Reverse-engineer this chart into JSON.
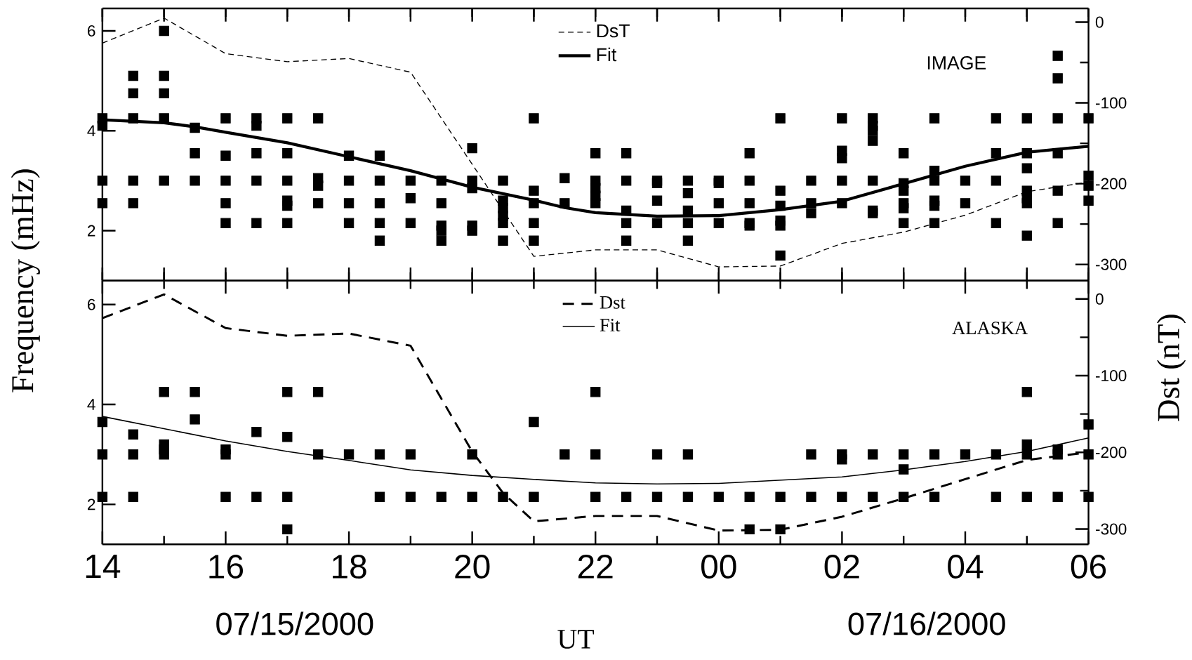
{
  "chart_data": [
    {
      "type": "scatter",
      "ylabel": "Frequency (mHz)",
      "y2label": "Dst (nT)",
      "annotations": [
        "IMAGE"
      ],
      "legend": "top",
      "tick_labels": "y",
      "xlim": [
        "2000-07-15T14:00",
        "2000-07-16T06:00"
      ],
      "xticks": [
        {
          "value": "2000-07-15T14:00",
          "label": null
        },
        {
          "value": "2000-07-15T15:00",
          "label": null
        },
        {
          "value": "2000-07-15T16:00",
          "label": null
        },
        {
          "value": "2000-07-15T17:00",
          "label": null
        },
        {
          "value": "2000-07-15T18:00",
          "label": null
        },
        {
          "value": "2000-07-15T19:00",
          "label": null
        },
        {
          "value": "2000-07-15T20:00",
          "label": null
        },
        {
          "value": "2000-07-15T21:00",
          "label": null
        },
        {
          "value": "2000-07-15T22:00",
          "label": null
        },
        {
          "value": "2000-07-15T23:00",
          "label": null
        },
        {
          "value": "2000-07-16T00:00",
          "label": null
        },
        {
          "value": "2000-07-16T01:00",
          "label": null
        },
        {
          "value": "2000-07-16T02:00",
          "label": null
        },
        {
          "value": "2000-07-16T03:00",
          "label": null
        },
        {
          "value": "2000-07-16T04:00",
          "label": null
        },
        {
          "value": "2000-07-16T05:00",
          "label": null
        },
        {
          "value": "2000-07-16T06:00",
          "label": null
        }
      ],
      "ylim": [
        1,
        6.45
      ],
      "yticks": [
        2,
        4,
        6
      ],
      "y2lim": [
        -320,
        17
      ],
      "y2ticks": [
        -300,
        {
          "value": -250,
          "label": null
        },
        -200,
        {
          "value": -150,
          "label": null
        },
        -100,
        {
          "value": -50,
          "label": null
        },
        0
      ],
      "series": [
        {
          "marker": "square",
          "color": "#000000",
          "x": [
            "2000-07-15T14:00",
            "2000-07-15T14:00",
            "2000-07-15T14:00",
            "2000-07-15T14:00",
            "2000-07-15T14:30",
            "2000-07-15T14:30",
            "2000-07-15T14:30",
            "2000-07-15T14:30",
            "2000-07-15T14:30",
            "2000-07-15T15:00",
            "2000-07-15T15:00",
            "2000-07-15T15:00",
            "2000-07-15T15:00",
            "2000-07-15T15:00",
            "2000-07-15T15:30",
            "2000-07-15T15:30",
            "2000-07-15T15:30",
            "2000-07-15T16:00",
            "2000-07-15T16:00",
            "2000-07-15T16:00",
            "2000-07-15T16:00",
            "2000-07-15T16:00",
            "2000-07-15T16:30",
            "2000-07-15T16:30",
            "2000-07-15T16:30",
            "2000-07-15T16:30",
            "2000-07-15T16:30",
            "2000-07-15T17:00",
            "2000-07-15T17:00",
            "2000-07-15T17:00",
            "2000-07-15T17:00",
            "2000-07-15T17:00",
            "2000-07-15T17:00",
            "2000-07-15T17:30",
            "2000-07-15T17:30",
            "2000-07-15T17:30",
            "2000-07-15T17:30",
            "2000-07-15T18:00",
            "2000-07-15T18:00",
            "2000-07-15T18:00",
            "2000-07-15T18:00",
            "2000-07-15T18:30",
            "2000-07-15T18:30",
            "2000-07-15T18:30",
            "2000-07-15T18:30",
            "2000-07-15T18:30",
            "2000-07-15T19:00",
            "2000-07-15T19:00",
            "2000-07-15T19:00",
            "2000-07-15T19:30",
            "2000-07-15T19:30",
            "2000-07-15T19:30",
            "2000-07-15T19:30",
            "2000-07-15T19:30",
            "2000-07-15T20:00",
            "2000-07-15T20:00",
            "2000-07-15T20:00",
            "2000-07-15T20:00",
            "2000-07-15T20:00",
            "2000-07-15T20:30",
            "2000-07-15T20:30",
            "2000-07-15T20:30",
            "2000-07-15T20:30",
            "2000-07-15T20:30",
            "2000-07-15T20:30",
            "2000-07-15T21:00",
            "2000-07-15T21:00",
            "2000-07-15T21:00",
            "2000-07-15T21:00",
            "2000-07-15T21:00",
            "2000-07-15T21:30",
            "2000-07-15T21:30",
            "2000-07-15T22:00",
            "2000-07-15T22:00",
            "2000-07-15T22:00",
            "2000-07-15T22:00",
            "2000-07-15T22:00",
            "2000-07-15T22:30",
            "2000-07-15T22:30",
            "2000-07-15T22:30",
            "2000-07-15T22:30",
            "2000-07-15T22:30",
            "2000-07-15T23:00",
            "2000-07-15T23:00",
            "2000-07-15T23:00",
            "2000-07-15T23:00",
            "2000-07-15T23:30",
            "2000-07-15T23:30",
            "2000-07-15T23:30",
            "2000-07-15T23:30",
            "2000-07-15T23:30",
            "2000-07-16T00:00",
            "2000-07-16T00:00",
            "2000-07-16T00:00",
            "2000-07-16T00:00",
            "2000-07-16T00:30",
            "2000-07-16T00:30",
            "2000-07-16T00:30",
            "2000-07-16T00:30",
            "2000-07-16T00:30",
            "2000-07-16T01:00",
            "2000-07-16T01:00",
            "2000-07-16T01:00",
            "2000-07-16T01:00",
            "2000-07-16T01:00",
            "2000-07-16T01:00",
            "2000-07-16T01:30",
            "2000-07-16T01:30",
            "2000-07-16T01:30",
            "2000-07-16T02:00",
            "2000-07-16T02:00",
            "2000-07-16T02:00",
            "2000-07-16T02:00",
            "2000-07-16T02:00",
            "2000-07-16T02:30",
            "2000-07-16T02:30",
            "2000-07-16T02:30",
            "2000-07-16T02:30",
            "2000-07-16T02:30",
            "2000-07-16T02:30",
            "2000-07-16T02:30",
            "2000-07-16T03:00",
            "2000-07-16T03:00",
            "2000-07-16T03:00",
            "2000-07-16T03:00",
            "2000-07-16T03:00",
            "2000-07-16T03:00",
            "2000-07-16T03:30",
            "2000-07-16T03:30",
            "2000-07-16T03:30",
            "2000-07-16T03:30",
            "2000-07-16T03:30",
            "2000-07-16T03:30",
            "2000-07-16T04:00",
            "2000-07-16T04:00",
            "2000-07-16T04:30",
            "2000-07-16T04:30",
            "2000-07-16T04:30",
            "2000-07-16T04:30",
            "2000-07-16T05:00",
            "2000-07-16T05:00",
            "2000-07-16T05:00",
            "2000-07-16T05:00",
            "2000-07-16T05:00",
            "2000-07-16T05:00",
            "2000-07-16T05:00",
            "2000-07-16T05:30",
            "2000-07-16T05:30",
            "2000-07-16T05:30",
            "2000-07-16T05:30",
            "2000-07-16T05:30",
            "2000-07-16T05:30",
            "2000-07-16T06:00",
            "2000-07-16T06:00",
            "2000-07-16T06:00",
            "2000-07-16T06:00"
          ],
          "values": [
            4.25,
            4.1,
            3.0,
            2.55,
            5.1,
            4.75,
            4.25,
            3.0,
            2.55,
            6.0,
            5.1,
            4.75,
            4.25,
            3.0,
            4.06,
            3.55,
            3.0,
            4.25,
            3.5,
            3.0,
            2.55,
            2.15,
            4.25,
            4.1,
            3.55,
            3.0,
            2.15,
            4.25,
            3.55,
            3.0,
            2.6,
            2.5,
            2.15,
            4.25,
            3.05,
            2.9,
            2.55,
            3.5,
            3.0,
            2.55,
            2.15,
            3.5,
            3.0,
            2.55,
            2.15,
            1.8,
            3.0,
            2.65,
            2.15,
            3.0,
            2.55,
            2.1,
            2.0,
            1.8,
            3.65,
            3.0,
            2.85,
            2.1,
            2.0,
            3.0,
            2.6,
            2.45,
            2.3,
            2.15,
            1.8,
            4.25,
            2.8,
            2.55,
            2.15,
            1.8,
            3.05,
            2.55,
            3.55,
            3.0,
            2.85,
            2.7,
            2.55,
            3.55,
            3.0,
            2.4,
            2.15,
            1.8,
            3.0,
            2.95,
            2.6,
            2.15,
            3.0,
            2.75,
            2.4,
            2.15,
            1.8,
            3.0,
            2.95,
            2.55,
            2.15,
            3.55,
            3.0,
            2.55,
            2.15,
            2.1,
            4.25,
            2.8,
            2.5,
            2.2,
            2.1,
            1.5,
            3.0,
            2.55,
            2.35,
            4.25,
            3.6,
            3.45,
            3.0,
            2.55,
            4.25,
            4.1,
            4.0,
            3.8,
            3.0,
            2.4,
            2.35,
            3.55,
            2.95,
            2.8,
            2.55,
            2.45,
            2.15,
            4.25,
            3.2,
            3.0,
            2.6,
            2.5,
            2.15,
            3.0,
            2.55,
            4.25,
            3.55,
            3.0,
            2.15,
            4.25,
            3.55,
            3.25,
            2.8,
            2.65,
            2.55,
            1.9,
            5.5,
            5.05,
            4.25,
            3.55,
            2.8,
            2.15,
            4.25,
            3.1,
            2.9,
            2.6
          ]
        },
        {
          "type": "line",
          "name": "DsT",
          "axis": "y2",
          "line_style": "dashed",
          "marker": "none",
          "color": "#000000",
          "x": [
            "2000-07-15T14:00",
            "2000-07-15T15:00",
            "2000-07-15T16:00",
            "2000-07-15T17:00",
            "2000-07-15T18:00",
            "2000-07-15T19:00",
            "2000-07-15T21:00",
            "2000-07-15T22:00",
            "2000-07-15T23:00",
            "2000-07-16T00:00",
            "2000-07-16T01:00",
            "2000-07-16T02:00",
            "2000-07-16T03:00",
            "2000-07-16T04:00",
            "2000-07-16T05:00",
            "2000-07-16T06:00"
          ],
          "values": [
            -26,
            5,
            -39,
            -49,
            -45,
            -62,
            -290,
            -282,
            -282,
            -303,
            -302,
            -274,
            -260,
            -239,
            -210,
            -198
          ]
        },
        {
          "type": "line",
          "name": "Fit",
          "line_style": "solid",
          "marker": "none",
          "color": "#000000",
          "x": [
            "2000-07-15T14:00",
            "2000-07-15T15:00",
            "2000-07-15T15:30",
            "2000-07-15T16:00",
            "2000-07-15T17:00",
            "2000-07-15T18:00",
            "2000-07-15T19:00",
            "2000-07-15T20:00",
            "2000-07-15T21:00",
            "2000-07-15T21:30",
            "2000-07-15T22:00",
            "2000-07-15T23:00",
            "2000-07-16T00:00",
            "2000-07-16T01:00",
            "2000-07-16T02:00",
            "2000-07-16T03:00",
            "2000-07-16T04:00",
            "2000-07-16T05:00",
            "2000-07-16T06:00"
          ],
          "values": [
            4.22,
            4.16,
            4.08,
            3.97,
            3.76,
            3.48,
            3.2,
            2.87,
            2.61,
            2.46,
            2.36,
            2.29,
            2.3,
            2.42,
            2.59,
            2.94,
            3.29,
            3.57,
            3.69
          ]
        }
      ]
    },
    {
      "type": "scatter",
      "xlabel": "UT",
      "annotations": [
        "ALASKA",
        "07/15/2000",
        "07/16/2000"
      ],
      "legend": "top",
      "xlim": [
        "2000-07-15T14:00",
        "2000-07-16T06:00"
      ],
      "xticks": [
        {
          "value": "2000-07-15T14:00",
          "label": "14"
        },
        {
          "value": "2000-07-15T15:00",
          "label": null
        },
        {
          "value": "2000-07-15T16:00",
          "label": "16"
        },
        {
          "value": "2000-07-15T17:00",
          "label": null
        },
        {
          "value": "2000-07-15T18:00",
          "label": "18"
        },
        {
          "value": "2000-07-15T19:00",
          "label": null
        },
        {
          "value": "2000-07-15T20:00",
          "label": "20"
        },
        {
          "value": "2000-07-15T21:00",
          "label": null
        },
        {
          "value": "2000-07-15T22:00",
          "label": "22"
        },
        {
          "value": "2000-07-15T23:00",
          "label": null
        },
        {
          "value": "2000-07-16T00:00",
          "label": "00"
        },
        {
          "value": "2000-07-16T01:00",
          "label": null
        },
        {
          "value": "2000-07-16T02:00",
          "label": "02"
        },
        {
          "value": "2000-07-16T03:00",
          "label": null
        },
        {
          "value": "2000-07-16T04:00",
          "label": "04"
        },
        {
          "value": "2000-07-16T05:00",
          "label": null
        },
        {
          "value": "2000-07-16T06:00",
          "label": "06"
        }
      ],
      "ylim": [
        1.2,
        6.48
      ],
      "yticks": [
        2,
        4,
        6
      ],
      "y2lim": [
        -320,
        24
      ],
      "y2ticks": [
        -300,
        {
          "value": -250,
          "label": null
        },
        -200,
        {
          "value": -150,
          "label": null
        },
        -100,
        {
          "value": -50,
          "label": null
        },
        0
      ],
      "series": [
        {
          "marker": "square",
          "color": "#000000",
          "x": [
            "2000-07-15T14:00",
            "2000-07-15T14:00",
            "2000-07-15T14:00",
            "2000-07-15T14:30",
            "2000-07-15T14:30",
            "2000-07-15T14:30",
            "2000-07-15T15:00",
            "2000-07-15T15:00",
            "2000-07-15T15:00",
            "2000-07-15T15:00",
            "2000-07-15T15:30",
            "2000-07-15T15:30",
            "2000-07-15T16:00",
            "2000-07-15T16:00",
            "2000-07-15T16:00",
            "2000-07-15T16:30",
            "2000-07-15T16:30",
            "2000-07-15T17:00",
            "2000-07-15T17:00",
            "2000-07-15T17:00",
            "2000-07-15T17:00",
            "2000-07-15T17:30",
            "2000-07-15T17:30",
            "2000-07-15T18:00",
            "2000-07-15T18:30",
            "2000-07-15T18:30",
            "2000-07-15T19:00",
            "2000-07-15T19:00",
            "2000-07-15T19:30",
            "2000-07-15T20:00",
            "2000-07-15T20:00",
            "2000-07-15T20:30",
            "2000-07-15T21:00",
            "2000-07-15T21:00",
            "2000-07-15T21:30",
            "2000-07-15T22:00",
            "2000-07-15T22:00",
            "2000-07-15T22:00",
            "2000-07-15T22:30",
            "2000-07-15T23:00",
            "2000-07-15T23:00",
            "2000-07-15T23:30",
            "2000-07-15T23:30",
            "2000-07-16T00:00",
            "2000-07-16T00:30",
            "2000-07-16T00:30",
            "2000-07-16T01:00",
            "2000-07-16T01:00",
            "2000-07-16T01:30",
            "2000-07-16T01:30",
            "2000-07-16T02:00",
            "2000-07-16T02:00",
            "2000-07-16T02:00",
            "2000-07-16T02:30",
            "2000-07-16T02:30",
            "2000-07-16T03:00",
            "2000-07-16T03:00",
            "2000-07-16T03:00",
            "2000-07-16T03:30",
            "2000-07-16T03:30",
            "2000-07-16T04:00",
            "2000-07-16T04:30",
            "2000-07-16T04:30",
            "2000-07-16T05:00",
            "2000-07-16T05:00",
            "2000-07-16T05:00",
            "2000-07-16T05:00",
            "2000-07-16T05:30",
            "2000-07-16T05:30",
            "2000-07-16T05:30",
            "2000-07-16T06:00",
            "2000-07-16T06:00",
            "2000-07-16T06:00"
          ],
          "values": [
            3.65,
            3.0,
            2.15,
            3.4,
            3.0,
            2.15,
            4.25,
            3.2,
            3.1,
            3.0,
            4.25,
            3.7,
            3.1,
            3.0,
            2.15,
            3.45,
            2.15,
            4.25,
            3.35,
            2.15,
            1.5,
            4.25,
            3.0,
            3.0,
            3.0,
            2.15,
            3.0,
            2.15,
            2.15,
            3.0,
            2.15,
            2.15,
            3.65,
            2.15,
            3.0,
            4.25,
            3.0,
            2.15,
            2.15,
            3.0,
            2.15,
            3.0,
            2.15,
            2.15,
            2.15,
            1.5,
            2.15,
            1.5,
            3.0,
            2.15,
            3.0,
            2.9,
            2.15,
            3.0,
            2.15,
            3.0,
            2.7,
            2.15,
            3.0,
            2.15,
            3.0,
            3.0,
            2.15,
            4.25,
            3.2,
            3.0,
            2.15,
            3.1,
            3.0,
            2.15,
            3.6,
            3.0,
            2.15
          ]
        },
        {
          "type": "line",
          "name": "Dst",
          "axis": "y2",
          "line_style": "dashed",
          "marker": "none",
          "color": "#000000",
          "x": [
            "2000-07-15T14:00",
            "2000-07-15T15:00",
            "2000-07-15T16:00",
            "2000-07-15T17:00",
            "2000-07-15T18:00",
            "2000-07-15T19:00",
            "2000-07-15T20:00",
            "2000-07-15T20:30",
            "2000-07-15T21:00",
            "2000-07-15T22:00",
            "2000-07-15T23:00",
            "2000-07-16T00:00",
            "2000-07-16T01:00",
            "2000-07-16T02:00",
            "2000-07-16T03:00",
            "2000-07-16T04:00",
            "2000-07-16T05:00",
            "2000-07-16T06:00"
          ],
          "values": [
            -25,
            6,
            -38,
            -48,
            -45,
            -61,
            -199,
            -253,
            -290,
            -283,
            -283,
            -302,
            -301,
            -284,
            -260,
            -235,
            -210,
            -200
          ]
        },
        {
          "type": "line",
          "name": "Fit",
          "line_style": "solid",
          "marker": "none",
          "color": "#000000",
          "x": [
            "2000-07-15T14:00",
            "2000-07-15T16:00",
            "2000-07-15T17:00",
            "2000-07-15T18:00",
            "2000-07-15T19:00",
            "2000-07-15T20:00",
            "2000-07-15T21:00",
            "2000-07-15T22:00",
            "2000-07-15T23:00",
            "2000-07-16T00:00",
            "2000-07-16T02:00",
            "2000-07-16T03:00",
            "2000-07-16T04:00",
            "2000-07-16T05:00",
            "2000-07-16T06:00"
          ],
          "values": [
            3.76,
            3.27,
            3.06,
            2.88,
            2.69,
            2.58,
            2.5,
            2.43,
            2.41,
            2.42,
            2.55,
            2.69,
            2.86,
            3.06,
            3.33
          ]
        }
      ]
    }
  ]
}
